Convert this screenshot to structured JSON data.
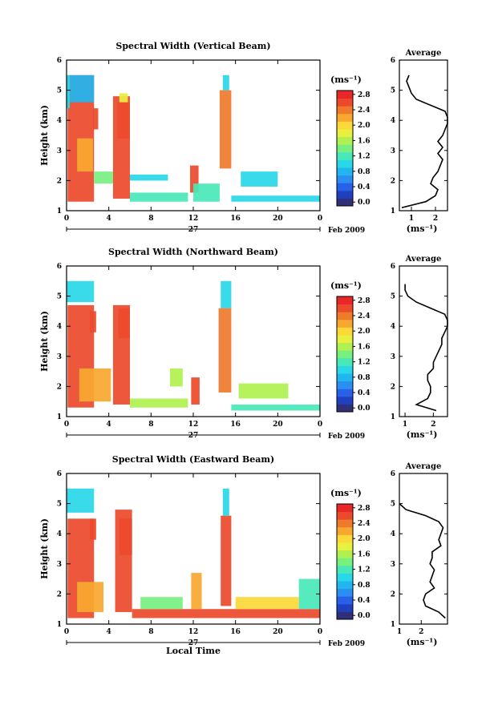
{
  "figure": {
    "xlabel": "Local Time",
    "date_day": "27",
    "date_month": "Feb 2009",
    "colorbar_unit": "(ms⁻¹)",
    "avg_unit": "(ms⁻¹)",
    "avg_title": "Average"
  },
  "colorbar": {
    "tick_labels": [
      "0.0",
      "0.4",
      "0.8",
      "1.2",
      "1.6",
      "2.0",
      "2.4",
      "2.8"
    ],
    "colors": [
      "#2f2f7a",
      "#2040c0",
      "#2860e8",
      "#2a8ef2",
      "#22b6f0",
      "#28d8e8",
      "#48e8b8",
      "#78f080",
      "#b0f050",
      "#e8f040",
      "#fcd838",
      "#f8a830",
      "#f07a2c",
      "#ec4a2c",
      "#e82828"
    ]
  },
  "chart_data": [
    {
      "type": "heatmap",
      "title": "Spectral Width (Vertical Beam)",
      "xlabel": "",
      "ylabel": "Height (km)",
      "xlim": [
        0,
        24
      ],
      "ylim": [
        1,
        6
      ],
      "xticks": [
        "0",
        "4",
        "8",
        "12",
        "16",
        "20",
        "0"
      ],
      "yticks": [
        "1",
        "2",
        "3",
        "4",
        "5",
        "6"
      ],
      "cbar_range": [
        0.0,
        3.0
      ],
      "blocks": [
        {
          "t": [
            0.1,
            2.6
          ],
          "h": [
            1.3,
            5.5
          ],
          "v": 2.8
        },
        {
          "t": [
            0.0,
            0.3
          ],
          "h": [
            4.4,
            5.5
          ],
          "v": 1.0
        },
        {
          "t": [
            0.3,
            2.6
          ],
          "h": [
            4.6,
            5.5
          ],
          "v": 0.9
        },
        {
          "t": [
            1.0,
            2.5
          ],
          "h": [
            2.3,
            3.4
          ],
          "v": 2.2
        },
        {
          "t": [
            2.5,
            3.0
          ],
          "h": [
            3.7,
            4.4
          ],
          "v": 2.7
        },
        {
          "t": [
            2.6,
            4.4
          ],
          "h": [
            1.9,
            2.3
          ],
          "v": 1.5
        },
        {
          "t": [
            4.4,
            6.0
          ],
          "h": [
            1.4,
            4.8
          ],
          "v": 2.6
        },
        {
          "t": [
            4.8,
            6.0
          ],
          "h": [
            3.4,
            4.6
          ],
          "v": 2.8
        },
        {
          "t": [
            5.0,
            5.8
          ],
          "h": [
            4.6,
            4.9
          ],
          "v": 1.8
        },
        {
          "t": [
            6.0,
            9.6
          ],
          "h": [
            2.0,
            2.2
          ],
          "v": 1.2
        },
        {
          "t": [
            6.0,
            11.5
          ],
          "h": [
            1.3,
            1.6
          ],
          "v": 1.3
        },
        {
          "t": [
            11.7,
            12.5
          ],
          "h": [
            1.6,
            2.5
          ],
          "v": 2.6
        },
        {
          "t": [
            12.0,
            14.5
          ],
          "h": [
            1.3,
            1.9
          ],
          "v": 1.4
        },
        {
          "t": [
            14.5,
            15.6
          ],
          "h": [
            2.4,
            5.0
          ],
          "v": 2.5
        },
        {
          "t": [
            14.8,
            15.4
          ],
          "h": [
            5.0,
            5.5
          ],
          "v": 1.0
        },
        {
          "t": [
            15.6,
            24.0
          ],
          "h": [
            1.3,
            1.5
          ],
          "v": 1.2
        },
        {
          "t": [
            16.5,
            20.0
          ],
          "h": [
            1.8,
            2.3
          ],
          "v": 1.1
        }
      ],
      "profile": {
        "xlim": [
          0.5,
          2.5
        ],
        "xticks": [
          "1",
          "2"
        ],
        "heights": [
          1.1,
          1.3,
          1.5,
          1.7,
          1.9,
          2.1,
          2.3,
          2.5,
          2.7,
          2.9,
          3.1,
          3.3,
          3.5,
          3.7,
          3.9,
          4.1,
          4.3,
          4.5,
          4.7,
          4.9,
          5.1,
          5.3,
          5.5
        ],
        "values": [
          0.6,
          1.6,
          2.0,
          2.1,
          1.8,
          1.9,
          2.1,
          2.2,
          2.3,
          2.1,
          2.3,
          2.1,
          2.3,
          2.4,
          2.5,
          2.5,
          2.4,
          1.8,
          1.2,
          1.0,
          0.9,
          0.8,
          0.9
        ]
      }
    },
    {
      "type": "heatmap",
      "title": "Spectral Width (Northward Beam)",
      "xlabel": "",
      "ylabel": "Height (km)",
      "xlim": [
        0,
        24
      ],
      "ylim": [
        1,
        6
      ],
      "xticks": [
        "0",
        "4",
        "8",
        "12",
        "16",
        "20",
        "0"
      ],
      "yticks": [
        "1",
        "2",
        "3",
        "4",
        "5",
        "6"
      ],
      "cbar_range": [
        0.0,
        3.0
      ],
      "blocks": [
        {
          "t": [
            0.1,
            2.6
          ],
          "h": [
            1.3,
            4.7
          ],
          "v": 2.8
        },
        {
          "t": [
            0.0,
            2.6
          ],
          "h": [
            4.8,
            5.5
          ],
          "v": 1.0
        },
        {
          "t": [
            2.2,
            2.8
          ],
          "h": [
            3.8,
            4.5
          ],
          "v": 2.7
        },
        {
          "t": [
            1.2,
            4.2
          ],
          "h": [
            1.5,
            2.6
          ],
          "v": 2.2
        },
        {
          "t": [
            4.4,
            6.0
          ],
          "h": [
            1.4,
            4.7
          ],
          "v": 2.7
        },
        {
          "t": [
            4.9,
            6.0
          ],
          "h": [
            3.6,
            4.6
          ],
          "v": 2.8
        },
        {
          "t": [
            6.0,
            11.5
          ],
          "h": [
            1.3,
            1.6
          ],
          "v": 1.7
        },
        {
          "t": [
            9.8,
            11.0
          ],
          "h": [
            2.0,
            2.6
          ],
          "v": 1.6
        },
        {
          "t": [
            11.8,
            12.6
          ],
          "h": [
            1.4,
            2.3
          ],
          "v": 2.6
        },
        {
          "t": [
            14.4,
            15.6
          ],
          "h": [
            1.8,
            4.6
          ],
          "v": 2.5
        },
        {
          "t": [
            14.6,
            15.6
          ],
          "h": [
            4.6,
            5.5
          ],
          "v": 1.1
        },
        {
          "t": [
            15.6,
            24.0
          ],
          "h": [
            1.2,
            1.4
          ],
          "v": 1.3
        },
        {
          "t": [
            16.3,
            21.0
          ],
          "h": [
            1.6,
            2.1
          ],
          "v": 1.7
        }
      ],
      "profile": {
        "xlim": [
          0.8,
          2.5
        ],
        "xticks": [
          "1",
          "2"
        ],
        "heights": [
          1.2,
          1.4,
          1.6,
          1.8,
          2.0,
          2.2,
          2.4,
          2.6,
          2.8,
          3.0,
          3.2,
          3.4,
          3.6,
          3.8,
          4.0,
          4.2,
          4.4,
          4.6,
          4.8,
          5.0,
          5.2,
          5.4
        ],
        "values": [
          2.1,
          1.4,
          1.8,
          1.9,
          1.9,
          1.8,
          1.8,
          2.0,
          2.0,
          2.1,
          2.2,
          2.3,
          2.3,
          2.4,
          2.5,
          2.5,
          2.4,
          1.9,
          1.4,
          1.1,
          1.0,
          1.0
        ]
      }
    },
    {
      "type": "heatmap",
      "title": "Spectral Width (Eastward Beam)",
      "xlabel": "Local Time",
      "ylabel": "Height (km)",
      "xlim": [
        0,
        24
      ],
      "ylim": [
        1,
        6
      ],
      "xticks": [
        "0",
        "4",
        "8",
        "12",
        "16",
        "20",
        "0"
      ],
      "yticks": [
        "1",
        "2",
        "3",
        "4",
        "5",
        "6"
      ],
      "cbar_range": [
        0.0,
        3.0
      ],
      "blocks": [
        {
          "t": [
            0.1,
            2.6
          ],
          "h": [
            1.2,
            4.5
          ],
          "v": 2.8
        },
        {
          "t": [
            0.0,
            2.6
          ],
          "h": [
            4.7,
            5.5
          ],
          "v": 1.0
        },
        {
          "t": [
            2.2,
            2.8
          ],
          "h": [
            3.8,
            4.5
          ],
          "v": 2.7
        },
        {
          "t": [
            1.0,
            3.5
          ],
          "h": [
            1.4,
            2.4
          ],
          "v": 2.2
        },
        {
          "t": [
            4.6,
            6.2
          ],
          "h": [
            1.4,
            4.8
          ],
          "v": 2.7
        },
        {
          "t": [
            5.0,
            6.2
          ],
          "h": [
            3.3,
            4.5
          ],
          "v": 2.8
        },
        {
          "t": [
            6.2,
            24.0
          ],
          "h": [
            1.2,
            1.5
          ],
          "v": 2.6
        },
        {
          "t": [
            7.0,
            11.0
          ],
          "h": [
            1.5,
            1.9
          ],
          "v": 1.5
        },
        {
          "t": [
            11.8,
            12.8
          ],
          "h": [
            1.5,
            2.7
          ],
          "v": 2.4
        },
        {
          "t": [
            14.6,
            15.6
          ],
          "h": [
            1.6,
            4.6
          ],
          "v": 2.6
        },
        {
          "t": [
            14.8,
            15.4
          ],
          "h": [
            4.6,
            5.5
          ],
          "v": 1.2
        },
        {
          "t": [
            16.0,
            22.0
          ],
          "h": [
            1.5,
            1.9
          ],
          "v": 2.0
        },
        {
          "t": [
            22.0,
            24.0
          ],
          "h": [
            1.5,
            2.5
          ],
          "v": 1.4
        }
      ],
      "profile": {
        "xlim": [
          1.0,
          3.2
        ],
        "xticks": [
          "1",
          "2"
        ],
        "heights": [
          1.2,
          1.4,
          1.6,
          1.8,
          2.0,
          2.2,
          2.4,
          2.6,
          2.8,
          3.0,
          3.2,
          3.4,
          3.6,
          3.8,
          4.0,
          4.2,
          4.4,
          4.6,
          4.8,
          5.0
        ],
        "values": [
          3.1,
          2.8,
          2.2,
          2.1,
          2.2,
          2.6,
          2.4,
          2.5,
          2.6,
          2.4,
          2.5,
          2.5,
          2.9,
          2.8,
          2.9,
          3.0,
          2.8,
          2.2,
          1.3,
          1.0
        ]
      }
    }
  ]
}
